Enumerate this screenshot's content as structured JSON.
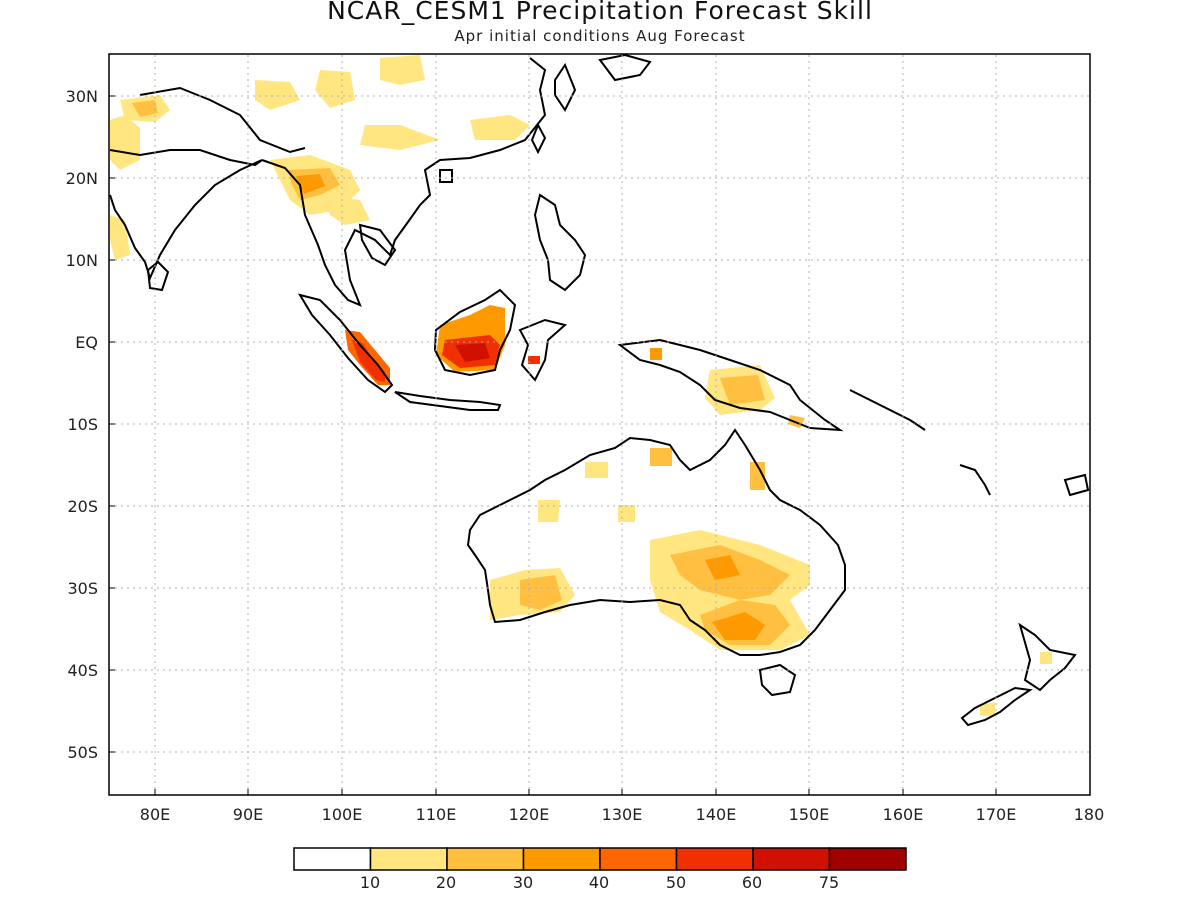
{
  "title": "NCAR_CESM1 Precipitation Forecast Skill",
  "subtitle": "Apr initial conditions  Aug Forecast",
  "lat_labels": [
    "30N",
    "20N",
    "10N",
    "EQ",
    "10S",
    "20S",
    "30S",
    "40S",
    "50S"
  ],
  "lon_labels": [
    "80E",
    "90E",
    "100E",
    "110E",
    "120E",
    "130E",
    "140E",
    "150E",
    "160E",
    "170E",
    "180"
  ],
  "colorbar": {
    "labels": [
      "10",
      "20",
      "30",
      "40",
      "50",
      "60",
      "75"
    ],
    "colors": [
      "#ffffff",
      "#ffe680",
      "#ffbf40",
      "#ff9900",
      "#ff6600",
      "#f03000",
      "#d01000",
      "#a00000"
    ]
  },
  "colors": {
    "land_outline": "#000000",
    "grid": "#b0b0b0"
  }
}
